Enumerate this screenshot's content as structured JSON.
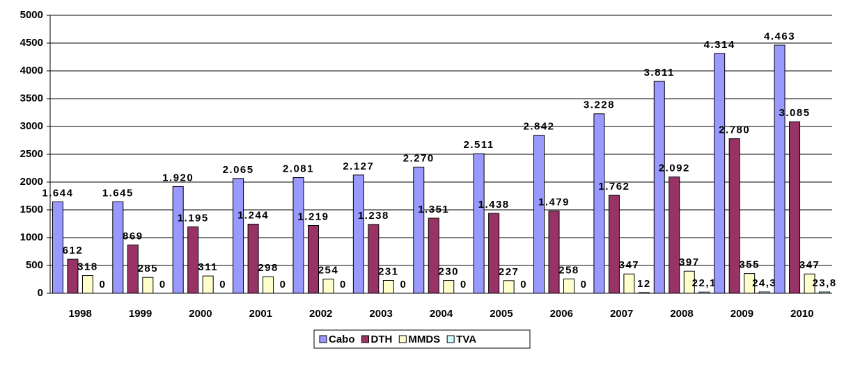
{
  "chart_data": {
    "type": "bar",
    "categories": [
      "1998",
      "1999",
      "2000",
      "2001",
      "2002",
      "2003",
      "2004",
      "2005",
      "2006",
      "2007",
      "2008",
      "2009",
      "2010"
    ],
    "series": [
      {
        "name": "Cabo",
        "color": "#9999ff",
        "values": [
          1644,
          1645,
          1920,
          2065,
          2081,
          2127,
          2270,
          2511,
          2842,
          3228,
          3811,
          4314,
          4463
        ],
        "value_labels": [
          "1.644",
          "1.645",
          "1.920",
          "2.065",
          "2.081",
          "2.127",
          "2.270",
          "2.511",
          "2.842",
          "3.228",
          "3.811",
          "4.314",
          "4.463"
        ]
      },
      {
        "name": "DTH",
        "color": "#993366",
        "values": [
          612,
          869,
          1195,
          1244,
          1219,
          1238,
          1351,
          1438,
          1479,
          1762,
          2092,
          2780,
          3085
        ],
        "value_labels": [
          "612",
          "869",
          "1.195",
          "1.244",
          "1.219",
          "1.238",
          "1.351",
          "1.438",
          "1.479",
          "1.762",
          "2.092",
          "2.780",
          "3.085"
        ]
      },
      {
        "name": "MMDS",
        "color": "#ffffcc",
        "values": [
          318,
          285,
          311,
          298,
          254,
          231,
          230,
          227,
          258,
          347,
          397,
          355,
          347
        ]
      },
      {
        "name": "TVA",
        "color": "#ccffff",
        "values": [
          0,
          0,
          0,
          0,
          0,
          0,
          0,
          0,
          0,
          12,
          22.1,
          24.3,
          23.8
        ],
        "value_labels": [
          "0",
          "0",
          "0",
          "0",
          "0",
          "0",
          "0",
          "0",
          "0",
          "12",
          "22,1",
          "24,3",
          "23,8"
        ]
      }
    ],
    "ylim": [
      0,
      5000
    ],
    "yticks": [
      0,
      500,
      1000,
      1500,
      2000,
      2500,
      3000,
      3500,
      4000,
      4500,
      5000
    ],
    "grid": true,
    "legend": "bottom"
  }
}
